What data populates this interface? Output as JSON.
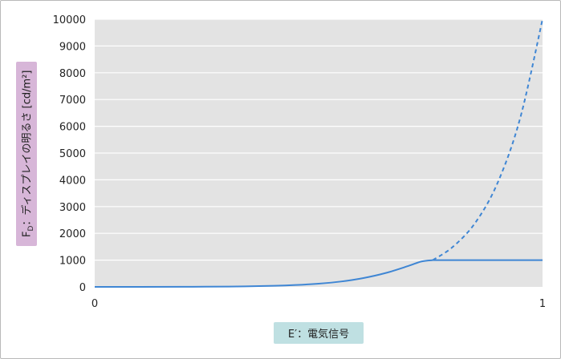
{
  "chart_data": {
    "type": "line",
    "xlabel": "E′：電気信号",
    "ylabel": {
      "prefix": "F",
      "sub": "D",
      "rest": "：ディスプレイの明るさ [cd/m²]"
    },
    "xlim": [
      0,
      1
    ],
    "ylim": [
      0,
      10000
    ],
    "x_ticks": [
      "0",
      "1"
    ],
    "y_ticks": [
      "0",
      "1000",
      "2000",
      "3000",
      "4000",
      "5000",
      "6000",
      "7000",
      "8000",
      "9000",
      "10000"
    ],
    "grid": true,
    "background_color": "#e3e3e3",
    "grid_color": "#ffffff",
    "line_color": "#3f86d4",
    "series": [
      {
        "style": "solid",
        "x": [
          0,
          0.1,
          0.2,
          0.3,
          0.4,
          0.45,
          0.5,
          0.55,
          0.6,
          0.65,
          0.7,
          0.73,
          0.755
        ],
        "y": [
          0,
          0.3,
          3,
          12,
          40,
          70,
          120,
          200,
          330,
          520,
          780,
          950,
          1000
        ]
      },
      {
        "style": "solid",
        "x": [
          0.755,
          1.0
        ],
        "y": [
          1000,
          1000
        ]
      },
      {
        "style": "dashed",
        "x": [
          0.755,
          0.8,
          0.85,
          0.9,
          0.95,
          1.0
        ],
        "y": [
          1000,
          1500,
          2400,
          3900,
          6300,
          10000
        ]
      }
    ]
  }
}
